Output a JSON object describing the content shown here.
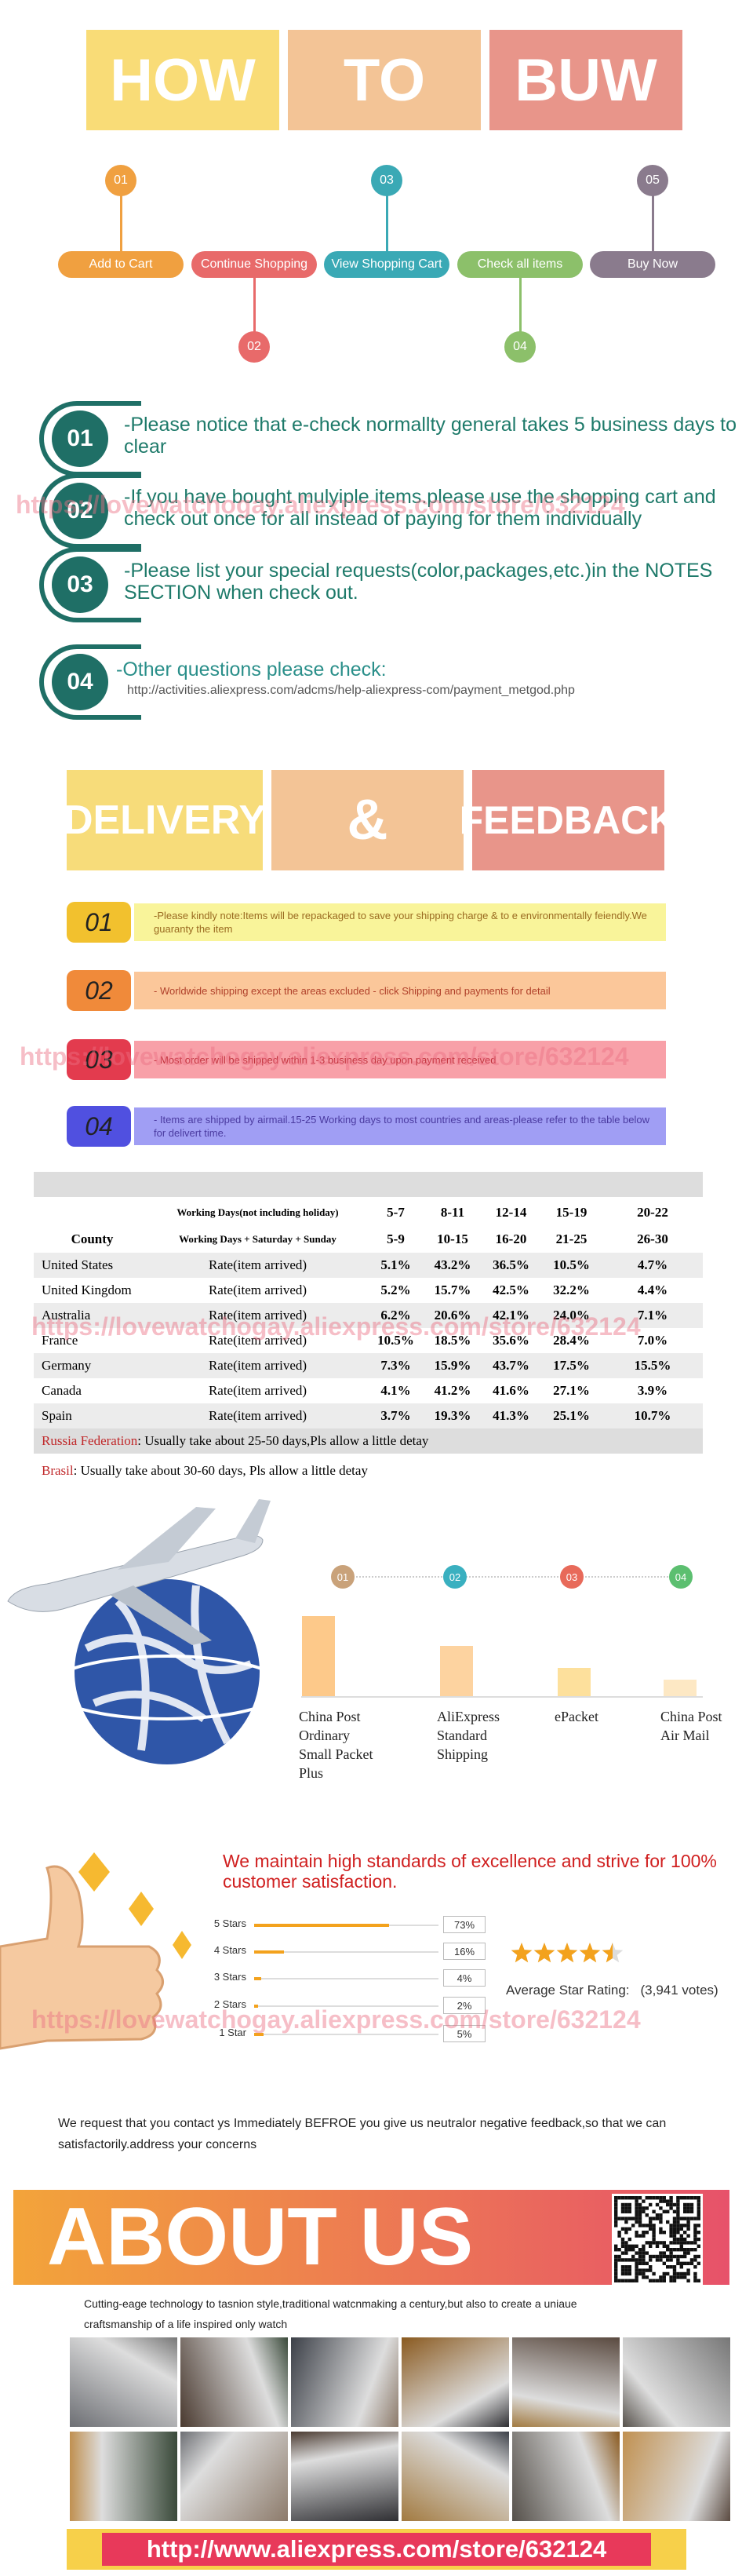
{
  "header": {
    "words": [
      "HOW",
      "TO",
      "BUW"
    ]
  },
  "steps": [
    {
      "num": "01",
      "label": "Add to Cart"
    },
    {
      "num": "02",
      "label": "Continue Shopping"
    },
    {
      "num": "03",
      "label": "View Shopping Cart"
    },
    {
      "num": "04",
      "label": "Check all items"
    },
    {
      "num": "05",
      "label": "Buy Now"
    }
  ],
  "notices": [
    {
      "num": "01",
      "text": "-Please notice that e-check normallty general takes 5 business days to clear"
    },
    {
      "num": "02",
      "text": "-If you have bought mulyiple items.please use the shopping cart and check out once for all instead of paying for them individually"
    },
    {
      "num": "03",
      "text": "-Please list your special requests(color,packages,etc.)in the NOTES SECTION when check out."
    },
    {
      "num": "04",
      "text": "-Other questions please check:",
      "link": "http://activities.aliexpress.com/adcms/help-aliexpress-com/payment_metgod.php"
    }
  ],
  "watermark": "https://lovewatchogay.aliexpress.com/store/632124",
  "delivery_header": {
    "words": [
      "DELIVERY",
      "&",
      "FEEDBACK"
    ]
  },
  "delivery_notes": [
    {
      "num": "01",
      "text": "-Please kindly note:Items will be repackaged to save your shipping charge & to e environmentally feiendly.We guaranty the item"
    },
    {
      "num": "02",
      "text": "- Worldwide shipping except the areas excluded - click Shipping and payments for detail"
    },
    {
      "num": "03",
      "text": "- Most order will be shipped within 1-3 business day upon payment received"
    },
    {
      "num": "04",
      "text": "- Items are shipped by airmail.15-25 Working days to most countries and areas-please refer to the table below for delivert time."
    }
  ],
  "shipping_table": {
    "header1": [
      "Working Days(not including holiday)",
      "5-7",
      "8-11",
      "12-14",
      "15-19",
      "20-22"
    ],
    "header2": [
      "County",
      "Working Days + Saturday + Sunday",
      "5-9",
      "10-15",
      "16-20",
      "21-25",
      "26-30"
    ],
    "rows": [
      [
        "United States",
        "Rate(item arrived)",
        "5.1%",
        "43.2%",
        "36.5%",
        "10.5%",
        "4.7%"
      ],
      [
        "United Kingdom",
        "Rate(item arrived)",
        "5.2%",
        "15.7%",
        "42.5%",
        "32.2%",
        "4.4%"
      ],
      [
        "Australia",
        "Rate(item arrived)",
        "6.2%",
        "20.6%",
        "42.1%",
        "24.0%",
        "7.1%"
      ],
      [
        "France",
        "Rate(item arrived)",
        "10.5%",
        "18.5%",
        "35.6%",
        "28.4%",
        "7.0%"
      ],
      [
        "Germany",
        "Rate(item arrived)",
        "7.3%",
        "15.9%",
        "43.7%",
        "17.5%",
        "15.5%"
      ],
      [
        "Canada",
        "Rate(item arrived)",
        "4.1%",
        "41.2%",
        "41.6%",
        "27.1%",
        "3.9%"
      ],
      [
        "Spain",
        "Rate(item arrived)",
        "3.7%",
        "19.3%",
        "41.3%",
        "25.1%",
        "10.7%"
      ]
    ],
    "notes": [
      {
        "country": "Russia Federation",
        "text": ": Usually take about 25-50 days,Pls allow a little detay"
      },
      {
        "country": "Brasil",
        "text": ": Usually take about 30-60 days, Pls allow a little detay"
      }
    ]
  },
  "shipping_methods": {
    "type": "bar",
    "badges": [
      "01",
      "02",
      "03",
      "04"
    ],
    "categories": [
      "China Post Ordinary Small Packet Plus",
      "AliExpress Standard Shipping",
      "ePacket",
      "China Post Air Mail"
    ],
    "values": [
      48,
      30,
      17,
      10
    ],
    "colors": [
      "#fdc98a",
      "#fdd3a0",
      "#fde09c",
      "#fde8c4"
    ]
  },
  "satisfaction": {
    "title": "We maintain high standards of excellence and strive for 100% customer satisfaction.",
    "ratings": {
      "categories": [
        "5 Stars",
        "4 Stars",
        "3 Stars",
        "2 Stars",
        "1 Star"
      ],
      "values": [
        73,
        16,
        4,
        2,
        5
      ],
      "value_labels": [
        "73%",
        "16%",
        "4%",
        "2%",
        "5%"
      ]
    },
    "average_label": "Average Star Rating:",
    "average": 4.5,
    "votes": "(3,941 votes)"
  },
  "feedback_note": "We request that you contact ys Immediately BEFROE you give us neutralor negative feedback,so that we can satisfactorily.address your concerns",
  "about": {
    "title": "ABOUT US",
    "text": "Cutting-eage technology to tasnion style,traditional watcnmaking a century,but also to create a uniaue craftsmanship of a life inspired only watch"
  },
  "store_url": "http://www.aliexpress.com/store/632124"
}
